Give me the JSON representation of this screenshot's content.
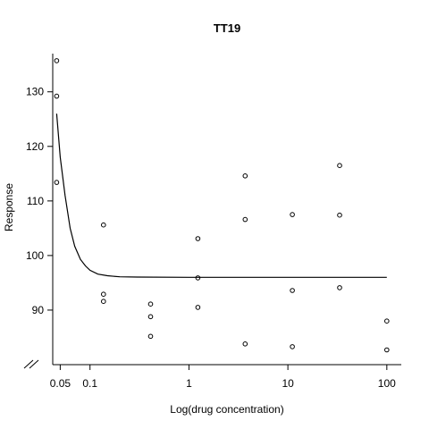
{
  "chart_data": {
    "type": "scatter",
    "title": "TT19",
    "xlabel": "Log(drug concentration)",
    "ylabel": "Response",
    "x_scale": "log",
    "xlim": [
      0.042,
      140
    ],
    "ylim": [
      80,
      137
    ],
    "x_ticks": [
      0.05,
      0.1,
      1,
      10,
      100
    ],
    "x_tick_labels": [
      "0.05",
      "0.1",
      "1",
      "10",
      "100"
    ],
    "y_ticks": [
      90,
      100,
      110,
      120,
      130
    ],
    "y_tick_labels": [
      "90",
      "100",
      "110",
      "120",
      "130"
    ],
    "axis_break": "bottom-left",
    "grid": false,
    "legend": "none",
    "points": [
      {
        "x": 0.046,
        "y": 135.7
      },
      {
        "x": 0.046,
        "y": 129.2
      },
      {
        "x": 0.046,
        "y": 113.4
      },
      {
        "x": 0.137,
        "y": 105.6
      },
      {
        "x": 0.137,
        "y": 92.9
      },
      {
        "x": 0.137,
        "y": 91.6
      },
      {
        "x": 0.41,
        "y": 91.1
      },
      {
        "x": 0.41,
        "y": 88.8
      },
      {
        "x": 0.41,
        "y": 85.2
      },
      {
        "x": 1.23,
        "y": 103.1
      },
      {
        "x": 1.23,
        "y": 95.9
      },
      {
        "x": 1.23,
        "y": 90.5
      },
      {
        "x": 3.7,
        "y": 114.6
      },
      {
        "x": 3.7,
        "y": 106.6
      },
      {
        "x": 3.7,
        "y": 83.8
      },
      {
        "x": 11.1,
        "y": 107.5
      },
      {
        "x": 11.1,
        "y": 93.6
      },
      {
        "x": 11.1,
        "y": 83.3
      },
      {
        "x": 33.3,
        "y": 116.5
      },
      {
        "x": 33.3,
        "y": 107.4
      },
      {
        "x": 33.3,
        "y": 94.1
      },
      {
        "x": 100,
        "y": 88.0
      },
      {
        "x": 100,
        "y": 82.7
      }
    ],
    "fitted_curve": [
      {
        "x": 0.046,
        "y": 126.0
      },
      {
        "x": 0.05,
        "y": 118.0
      },
      {
        "x": 0.056,
        "y": 111.0
      },
      {
        "x": 0.063,
        "y": 105.0
      },
      {
        "x": 0.07,
        "y": 101.7
      },
      {
        "x": 0.08,
        "y": 99.3
      },
      {
        "x": 0.09,
        "y": 98.1
      },
      {
        "x": 0.1,
        "y": 97.3
      },
      {
        "x": 0.12,
        "y": 96.6
      },
      {
        "x": 0.15,
        "y": 96.3
      },
      {
        "x": 0.2,
        "y": 96.1
      },
      {
        "x": 0.3,
        "y": 96.05
      },
      {
        "x": 1,
        "y": 96.0
      },
      {
        "x": 10,
        "y": 96.0
      },
      {
        "x": 100,
        "y": 96.0
      }
    ]
  }
}
